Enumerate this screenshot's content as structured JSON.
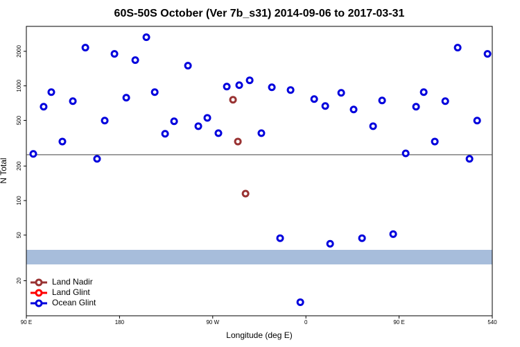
{
  "chart_data": {
    "type": "scatter",
    "title": "60S-50S October (Ver 7b_s31)   2014-09-06 to 2017-03-31",
    "x_label": "Longitude (deg E)",
    "y_label": "N Total",
    "log_y": true,
    "legend": "bottom-left",
    "reference_line": 251,
    "xlim": [
      90,
      540
    ],
    "ylim": [
      9.9,
      3300
    ],
    "xticks": [
      {
        "value": 90,
        "label": "90 E"
      },
      180,
      {
        "value": 270,
        "label": "90 W"
      },
      {
        "value": 360,
        "label": "0"
      },
      {
        "value": 450,
        "label": "90 E"
      },
      540
    ],
    "yticks": [
      20,
      50,
      100,
      200,
      500,
      1000,
      2000
    ],
    "series": [
      {
        "name": "Land Nadir",
        "color": "#993333",
        "x": [
          289.6,
          294.3,
          301.7
        ],
        "values": [
          757,
          327,
          115
        ]
      },
      {
        "name": "Land Glint",
        "color": "#ff0000",
        "x": [],
        "values": []
      },
      {
        "name": "Ocean Glint",
        "color": "#0000dd",
        "x": [
          96.7,
          106.7,
          114.1,
          124.8,
          134.9,
          147,
          158.3,
          165.7,
          175.1,
          186.5,
          195.2,
          205.9,
          214,
          224,
          232.7,
          246.1,
          256.1,
          264.8,
          275.5,
          283.6,
          295.6,
          305.7,
          317,
          327.1,
          335.1,
          345.2,
          354.6,
          368,
          378.7,
          383.4,
          394.1,
          406.1,
          414.2,
          424.9,
          433.6,
          444.3,
          456.4,
          466.4,
          473.8,
          484.5,
          494.6,
          506.6,
          518,
          525.4,
          535.4
        ],
        "values": [
          255,
          658,
          882,
          327,
          736,
          2154,
          231,
          498,
          1900,
          789,
          1676,
          2656,
          882,
          382,
          491,
          1500,
          445,
          526,
          387,
          986,
          1014,
          1118,
          387,
          972,
          47,
          920,
          13,
          767,
          667,
          42,
          869,
          622,
          47,
          445,
          746,
          51,
          258,
          658,
          882,
          327,
          736,
          2154,
          231,
          498,
          1900
        ]
      }
    ]
  }
}
